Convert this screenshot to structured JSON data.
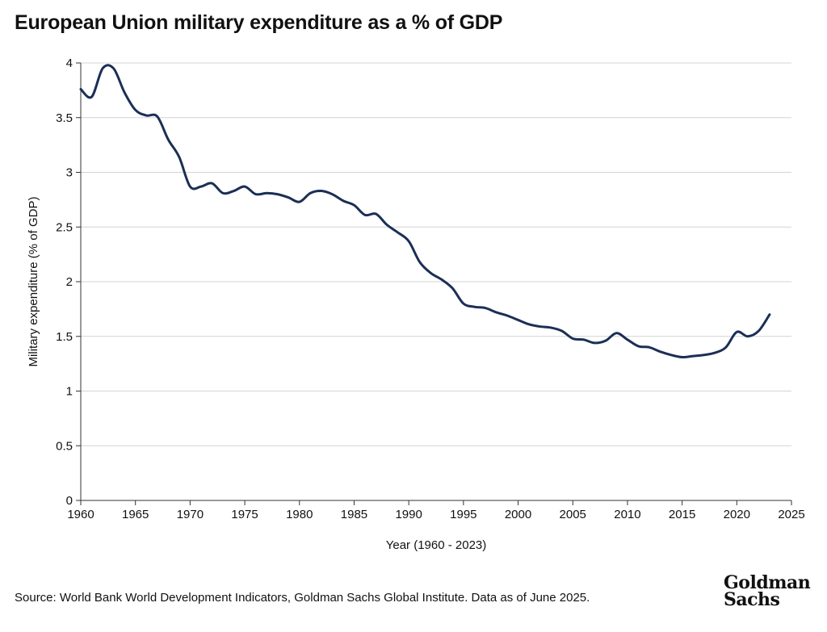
{
  "chart_data": {
    "type": "line",
    "title": "European Union military expenditure as a % of GDP",
    "xlabel": "Year (1960 - 2023)",
    "ylabel": "Military expenditure (% of GDP)",
    "xlim": [
      1960,
      2025
    ],
    "ylim": [
      0,
      4
    ],
    "xticks": [
      "1960",
      "1965",
      "1970",
      "1975",
      "1980",
      "1985",
      "1990",
      "1995",
      "2000",
      "2005",
      "2010",
      "2015",
      "2020",
      "2025"
    ],
    "yticks": [
      "0",
      "0.5",
      "1",
      "1.5",
      "2",
      "2.5",
      "3",
      "3.5",
      "4"
    ],
    "grid": "horizontal",
    "line_color": "#1b2f55",
    "series": [
      {
        "x": [
          1960,
          1961,
          1962,
          1963,
          1964,
          1965,
          1966,
          1967,
          1968,
          1969,
          1970,
          1971,
          1972,
          1973,
          1974,
          1975,
          1976,
          1977,
          1978,
          1979,
          1980,
          1981,
          1982,
          1983,
          1984,
          1985,
          1986,
          1987,
          1988,
          1989,
          1990,
          1991,
          1992,
          1993,
          1994,
          1995,
          1996,
          1997,
          1998,
          1999,
          2000,
          2001,
          2002,
          2003,
          2004,
          2005,
          2006,
          2007,
          2008,
          2009,
          2010,
          2011,
          2012,
          2013,
          2014,
          2015,
          2016,
          2017,
          2018,
          2019,
          2020,
          2021,
          2022,
          2023
        ],
        "values": [
          3.76,
          3.69,
          3.95,
          3.95,
          3.73,
          3.57,
          3.52,
          3.51,
          3.3,
          3.14,
          2.87,
          2.87,
          2.9,
          2.81,
          2.83,
          2.87,
          2.8,
          2.81,
          2.8,
          2.77,
          2.73,
          2.81,
          2.83,
          2.8,
          2.74,
          2.7,
          2.61,
          2.62,
          2.52,
          2.45,
          2.37,
          2.18,
          2.08,
          2.02,
          1.94,
          1.8,
          1.77,
          1.76,
          1.72,
          1.69,
          1.65,
          1.61,
          1.59,
          1.58,
          1.55,
          1.48,
          1.47,
          1.44,
          1.46,
          1.53,
          1.47,
          1.41,
          1.4,
          1.36,
          1.33,
          1.31,
          1.32,
          1.33,
          1.35,
          1.4,
          1.54,
          1.5,
          1.55,
          1.7
        ]
      }
    ]
  },
  "source": "Source: World Bank World Development Indicators, Goldman Sachs Global Institute. Data as of June 2025.",
  "logo": {
    "line1": "Goldman",
    "line2": "Sachs"
  }
}
